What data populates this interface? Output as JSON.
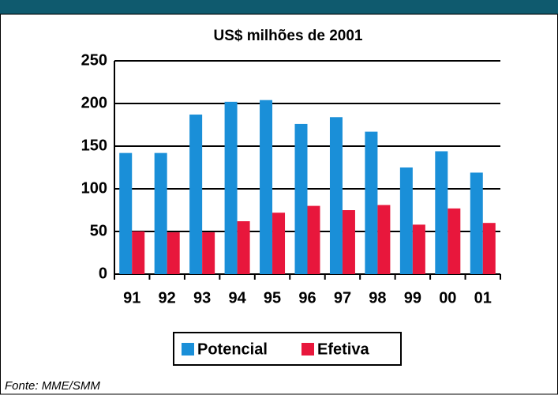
{
  "chart_data": {
    "type": "bar",
    "subtitle": "US$ milhões de 2001",
    "categories": [
      "91",
      "92",
      "93",
      "94",
      "95",
      "96",
      "97",
      "98",
      "99",
      "00",
      "01"
    ],
    "series": [
      {
        "name": "Potencial",
        "color": "#1a8fd8",
        "values": [
          142,
          142,
          187,
          202,
          204,
          176,
          184,
          167,
          125,
          144,
          119
        ]
      },
      {
        "name": "Efetiva",
        "color": "#e8173c",
        "values": [
          50,
          49,
          49,
          62,
          72,
          80,
          75,
          81,
          58,
          77,
          60
        ]
      }
    ],
    "ylim": [
      0,
      250
    ],
    "yticks": [
      0,
      50,
      100,
      150,
      200,
      250
    ],
    "grid": true,
    "legend": "bottom",
    "source": "Fonte: MME/SMM"
  }
}
